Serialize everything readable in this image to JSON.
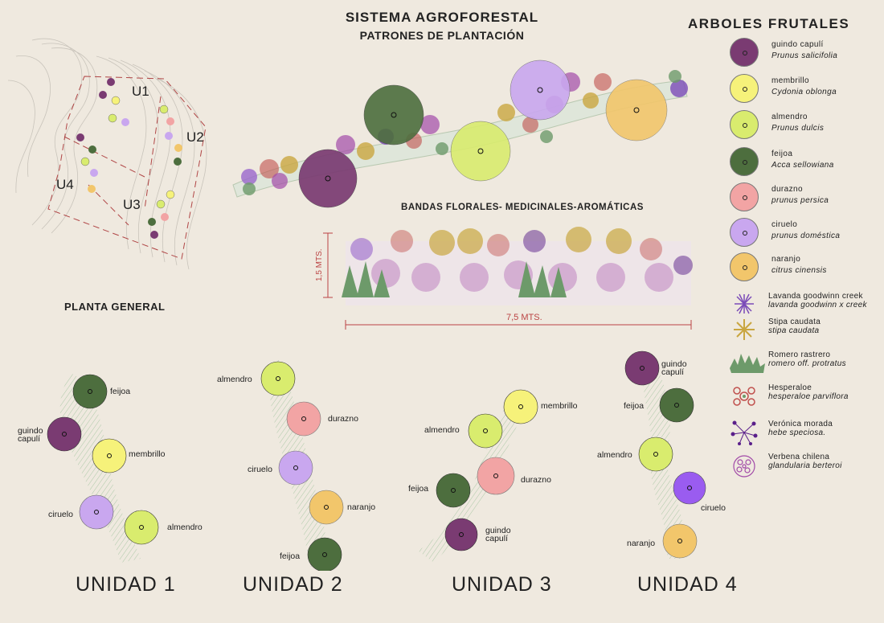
{
  "header": {
    "title": "SISTEMA  AGROFORESTAL",
    "subtitle": "PATRONES DE  PLANTACIÓN"
  },
  "legend": {
    "title": "ARBOLES  FRUTALES",
    "trees": [
      {
        "name": "guindo capulí",
        "scientific": "Prunus salicifolia",
        "color": "#7a3b72"
      },
      {
        "name": "membrillo",
        "scientific": "Cydonia oblonga",
        "color": "#f6f27a"
      },
      {
        "name": "almendro",
        "scientific": "Prunus dulcis",
        "color": "#d9ec6e"
      },
      {
        "name": "feijoa",
        "scientific": "Acca sellowiana",
        "color": "#4d6e3e"
      },
      {
        "name": "durazno",
        "scientific": "prunus persica",
        "color": "#f2a4a4"
      },
      {
        "name": "ciruelo",
        "scientific": " prunus doméstica",
        "color": "#c9a7ef"
      },
      {
        "name": "naranjo",
        "scientific": " citrus cinensis",
        "color": "#f2c66b"
      }
    ],
    "plants": [
      {
        "name": "Lavanda goodwinn creek",
        "scientific": "lavanda goodwinn x creek",
        "icon": "lavender-icon",
        "color": "#7b4bb8"
      },
      {
        "name": "Stipa caudata",
        "scientific": "stipa caudata",
        "icon": "stipa-icon",
        "color": "#c9a640"
      },
      {
        "name": "Romero rastrero",
        "scientific": "romero off. protratus",
        "icon": "rosemary-icon",
        "color": "#6d9a6a"
      },
      {
        "name": "Hesperaloe",
        "scientific": "hesperaloe parviflora",
        "icon": "hesperaloe-icon",
        "color": "#c0504d"
      },
      {
        "name": "Verónica morada",
        "scientific": "hebe speciosa.",
        "icon": "veronica-icon",
        "color": "#5a1f8a"
      },
      {
        "name": "Verbena chilena",
        "scientific": "glandularia berteroi",
        "icon": "verbena-icon",
        "color": "#a24aa8"
      }
    ]
  },
  "site_plan": {
    "title": "PLANTA GENERAL",
    "zones": [
      "U1",
      "U2",
      "U3",
      "U4"
    ]
  },
  "floral_band": {
    "title": "BANDAS FLORALES- MEDICINALES-AROMÁTICAS",
    "height_label": "1,5 MTS.",
    "width_label": "7,5 MTS."
  },
  "units": [
    {
      "title": "UNIDAD 1",
      "trees": [
        "feijoa",
        "guindo\ncapulí",
        "membrillo",
        "ciruelo",
        "almendro"
      ]
    },
    {
      "title": "UNIDAD 2",
      "trees": [
        "almendro",
        "durazno",
        "ciruelo",
        "naranjo",
        "feijoa"
      ]
    },
    {
      "title": "UNIDAD 3",
      "trees": [
        "membrillo",
        "almendro",
        "durazno",
        "feijoa",
        "guindo\ncapulí"
      ]
    },
    {
      "title": "UNIDAD 4",
      "trees": [
        "guindo\ncapulí",
        "feijoa",
        "almendro",
        "ciruelo",
        "naranjo"
      ]
    }
  ]
}
